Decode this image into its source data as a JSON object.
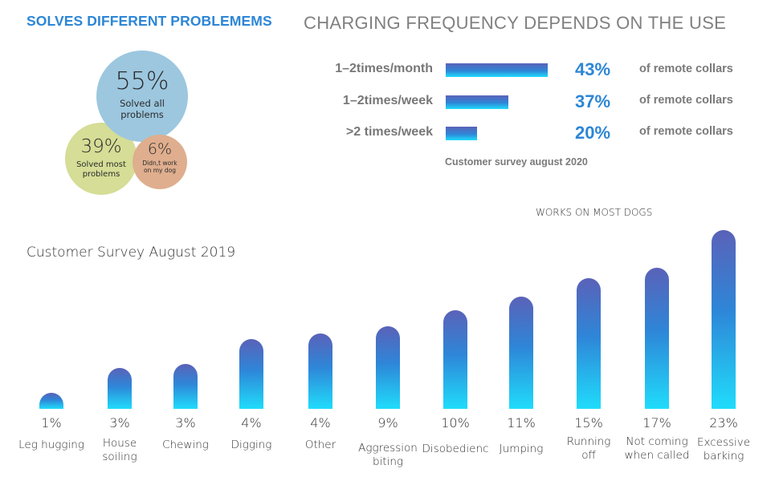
{
  "headers": {
    "left_title": "SOLVES DIFFERENT PROBLEMEMS",
    "right_title": "CHARGING FREQUENCY DEPENDS ON THE USE"
  },
  "colors": {
    "accent_blue": "#2d86d6",
    "bubble_blue": "#9cc7df",
    "bubble_green": "#d5dd96",
    "bubble_peach": "#dfae8e",
    "bar_gradient_top": "#5a62b8",
    "bar_gradient_mid": "#2e86d8",
    "bar_gradient_bottom": "#20dcfb",
    "gray_text": "#808080"
  },
  "chart_data": [
    {
      "type": "bubble",
      "title": "SOLVES DIFFERENT PROBLEMEMS",
      "items": [
        {
          "value": 55,
          "value_label": "55%",
          "label": "Solved all problems",
          "color": "#9cc7df"
        },
        {
          "value": 39,
          "value_label": "39%",
          "label": "Solved most problems",
          "color": "#d5dd96"
        },
        {
          "value": 6,
          "value_label": "6%",
          "label": "Didn,t work on my dog",
          "color": "#dfae8e"
        }
      ]
    },
    {
      "type": "bar",
      "orientation": "horizontal",
      "title": "CHARGING FREQUENCY DEPENDS ON THE USE",
      "categories": [
        "1–2times/month",
        "1–2times/week",
        ">2 times/week"
      ],
      "values": [
        43,
        37,
        20
      ],
      "value_labels": [
        "43%",
        "37%",
        "20%"
      ],
      "value_suffix": "of remote collars",
      "source": "Customer survey august 2020",
      "xlim": [
        0,
        43
      ]
    },
    {
      "type": "bar",
      "orientation": "vertical",
      "title": "Customer Survey August 2019",
      "annotation": "WORKS ON MOST DOGS",
      "categories": [
        "Leg hugging",
        "House\nsoiling",
        "Chewing",
        "Digging",
        "Other",
        "Aggression\nbiting",
        "Disobedienc",
        "Jumping",
        "Running\noff",
        "Not coming\nwhen called",
        "Excessive\nbarking"
      ],
      "values": [
        1,
        3,
        3,
        4,
        4,
        9,
        10,
        11,
        15,
        17,
        23
      ],
      "value_labels": [
        "1%",
        "3%",
        "3%",
        "4%",
        "4%",
        "9%",
        "10%",
        "11%",
        "15%",
        "17%",
        "23%"
      ],
      "relative_heights": [
        0.09,
        0.23,
        0.25,
        0.39,
        0.42,
        0.46,
        0.55,
        0.63,
        0.73,
        0.79,
        1.0
      ],
      "xlabel": "",
      "ylabel": "",
      "grid": false
    }
  ]
}
